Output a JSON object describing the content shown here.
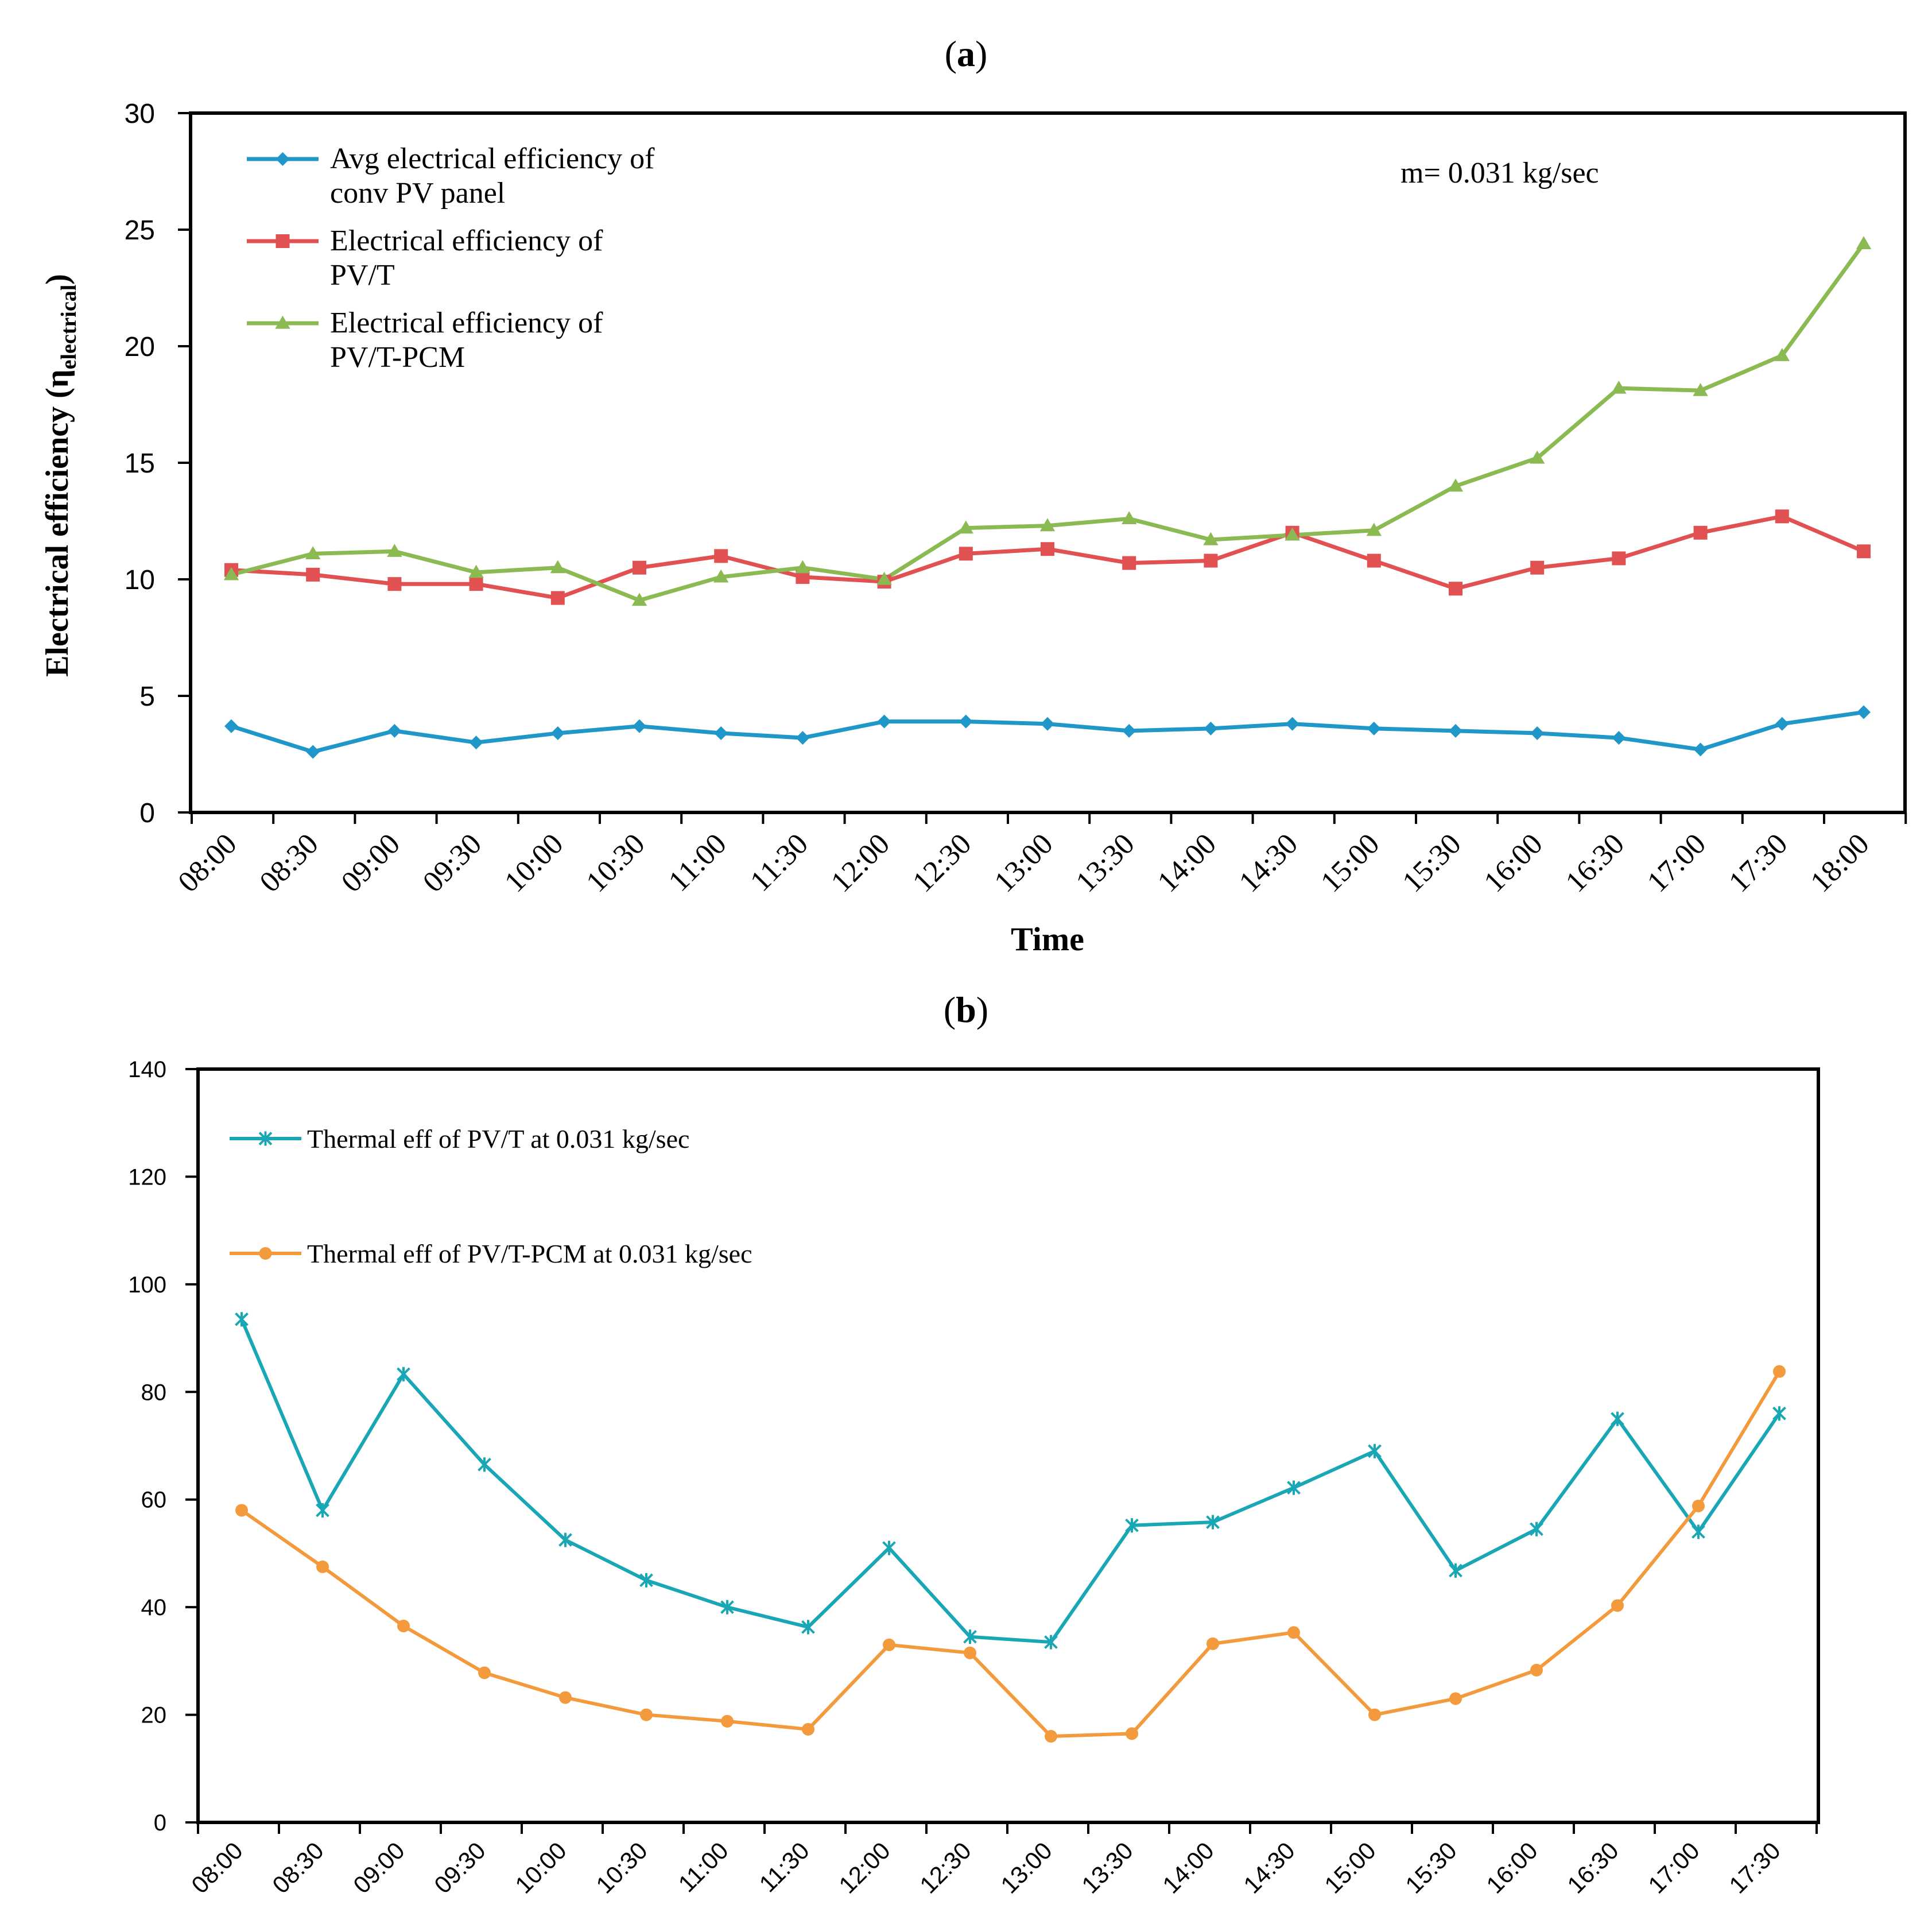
{
  "chart_data": [
    {
      "panel": "a",
      "panel_label": "a",
      "type": "line",
      "title": "",
      "xlabel": "Time",
      "ylabel": "Electrical efficiency (η",
      "ylabel_sub": "electrical",
      "ylabel_close": ")",
      "ylim": [
        0,
        30
      ],
      "yticks": [
        0,
        5,
        10,
        15,
        20,
        25,
        30
      ],
      "categories": [
        "08:00",
        "08:30",
        "09:00",
        "09:30",
        "10:00",
        "10:30",
        "11:00",
        "11:30",
        "12:00",
        "12:30",
        "13:00",
        "13:30",
        "14:00",
        "14:30",
        "15:00",
        "15:30",
        "16:00",
        "16:30",
        "17:00",
        "17:30",
        "18:00"
      ],
      "annotation": "m= 0.031 kg/sec",
      "grid": false,
      "legend": "top-left",
      "series": [
        {
          "name_lines": [
            "Avg electrical efficiency of",
            "conv PV panel"
          ],
          "color": "#1f97c8",
          "marker": "diamond",
          "values": [
            3.7,
            2.6,
            3.5,
            3.0,
            3.4,
            3.7,
            3.4,
            3.2,
            3.9,
            3.9,
            3.8,
            3.5,
            3.6,
            3.8,
            3.6,
            3.5,
            3.4,
            3.2,
            2.7,
            3.8,
            4.3
          ]
        },
        {
          "name_lines": [
            "Electrical efficiency of",
            "PV/T"
          ],
          "color": "#e15151",
          "marker": "square",
          "values": [
            10.4,
            10.2,
            9.8,
            9.8,
            9.2,
            10.5,
            11.0,
            10.1,
            9.9,
            11.1,
            11.3,
            10.7,
            10.8,
            12.0,
            10.8,
            9.6,
            10.5,
            10.9,
            12.0,
            12.7,
            11.2
          ]
        },
        {
          "name_lines": [
            "Electrical efficiency of",
            "PV/T-PCM"
          ],
          "color": "#8bba52",
          "marker": "triangle",
          "values": [
            10.2,
            11.1,
            11.2,
            10.3,
            10.5,
            9.1,
            10.1,
            10.5,
            10.0,
            12.2,
            12.3,
            12.6,
            11.7,
            11.9,
            12.1,
            14.0,
            15.2,
            18.2,
            18.1,
            19.6,
            24.4
          ]
        }
      ]
    },
    {
      "panel": "b",
      "panel_label": "b",
      "type": "line",
      "title": "",
      "xlabel": "",
      "ylabel": "",
      "ylim": [
        0,
        140
      ],
      "yticks": [
        0,
        20,
        40,
        60,
        80,
        100,
        120,
        140
      ],
      "categories": [
        "08:00",
        "08:30",
        "09:00",
        "09:30",
        "10:00",
        "10:30",
        "11:00",
        "11:30",
        "12:00",
        "12:30",
        "13:00",
        "13:30",
        "14:00",
        "14:30",
        "15:00",
        "15:30",
        "16:00",
        "16:30",
        "17:00",
        "17:30"
      ],
      "grid": false,
      "legend": "top-left",
      "series": [
        {
          "name": "Thermal eff of PV/T at 0.031 kg/sec",
          "color": "#1aa7b5",
          "marker": "star",
          "values": [
            93.5,
            58.0,
            83.3,
            66.5,
            52.5,
            45.0,
            40.0,
            36.3,
            51.0,
            34.5,
            33.5,
            55.2,
            55.8,
            62.2,
            69.0,
            46.8,
            54.5,
            75.0,
            54.0,
            76.0
          ]
        },
        {
          "name": "Thermal eff of PV/T-PCM at 0.031 kg/sec",
          "color": "#f29a3c",
          "marker": "circle",
          "values": [
            58.0,
            47.5,
            36.5,
            27.8,
            23.2,
            20.0,
            18.8,
            17.3,
            33.0,
            31.5,
            16.0,
            16.5,
            33.2,
            35.3,
            20.0,
            23.0,
            28.3,
            40.3,
            58.8,
            83.8
          ]
        }
      ]
    }
  ]
}
